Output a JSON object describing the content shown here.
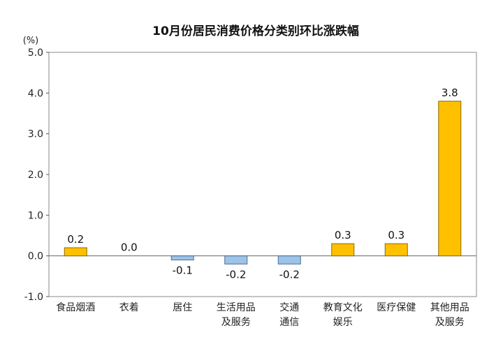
{
  "chart_data": {
    "type": "bar",
    "title": "10月份居民消费价格分类别环比涨跌幅",
    "unit_label": "(%)",
    "categories": [
      [
        "食品烟酒"
      ],
      [
        "衣着"
      ],
      [
        "居住"
      ],
      [
        "生活用品",
        "及服务"
      ],
      [
        "交通",
        "通信"
      ],
      [
        "教育文化",
        "娱乐"
      ],
      [
        "医疗保健"
      ],
      [
        "其他用品",
        "及服务"
      ]
    ],
    "values": [
      0.2,
      0.0,
      -0.1,
      -0.2,
      -0.2,
      0.3,
      0.3,
      3.8
    ],
    "value_labels": [
      "0.2",
      "0.0",
      "-0.1",
      "-0.2",
      "-0.2",
      "0.3",
      "0.3",
      "3.8"
    ],
    "ylim": [
      -1.0,
      5.0
    ],
    "yticks": [
      "5.0",
      "4.0",
      "3.0",
      "2.0",
      "1.0",
      "0.0",
      "-1.0"
    ],
    "ytick_values": [
      5.0,
      4.0,
      3.0,
      2.0,
      1.0,
      0.0,
      -1.0
    ],
    "colors": {
      "positive_fill": "#FFC000",
      "positive_stroke": "#8A6A00",
      "negative_fill": "#9DC3E6",
      "negative_stroke": "#4A6E94"
    },
    "grid": false,
    "legend": "none"
  }
}
